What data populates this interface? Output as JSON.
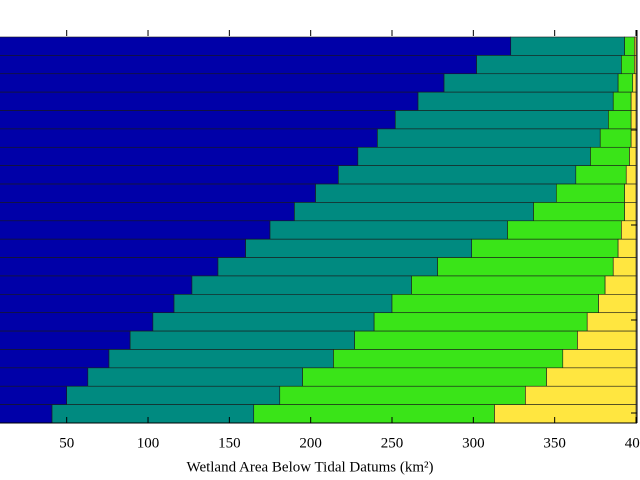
{
  "chart_data": {
    "type": "stacked-barh",
    "xlabel": "Wetland Area Below Tidal Datums (km²)",
    "categories": [
      null,
      null,
      null,
      null,
      null,
      null,
      null,
      null,
      null,
      null,
      null,
      null,
      null,
      null,
      null,
      null,
      null,
      null,
      null,
      null,
      null
    ],
    "series": [
      {
        "color": "#0000a8",
        "values": [
          323,
          302,
          282,
          266,
          252,
          241,
          229,
          217,
          203,
          190,
          175,
          160,
          143,
          127,
          116,
          103,
          89,
          76,
          63,
          50,
          41
        ]
      },
      {
        "color": "#008a80",
        "values": [
          70,
          89,
          107,
          120,
          131,
          137,
          143,
          146,
          148,
          147,
          146,
          139,
          135,
          135,
          134,
          136,
          138,
          138,
          132,
          131,
          124
        ]
      },
      {
        "color": "#3ae418",
        "values": [
          6,
          8,
          9,
          11,
          14,
          19,
          24,
          31,
          42,
          56,
          70,
          90,
          108,
          119,
          127,
          131,
          137,
          141,
          150,
          151,
          148
        ]
      },
      {
        "color": "#ffe640",
        "values": [
          1,
          1,
          2,
          3,
          3,
          3,
          4,
          6,
          7,
          7,
          9,
          11,
          14,
          19,
          23,
          30,
          36,
          45,
          55,
          68,
          87
        ]
      }
    ],
    "xlim": [
      9,
      400
    ],
    "xticks": [
      50,
      100,
      150,
      200,
      250,
      300,
      350,
      400
    ]
  }
}
